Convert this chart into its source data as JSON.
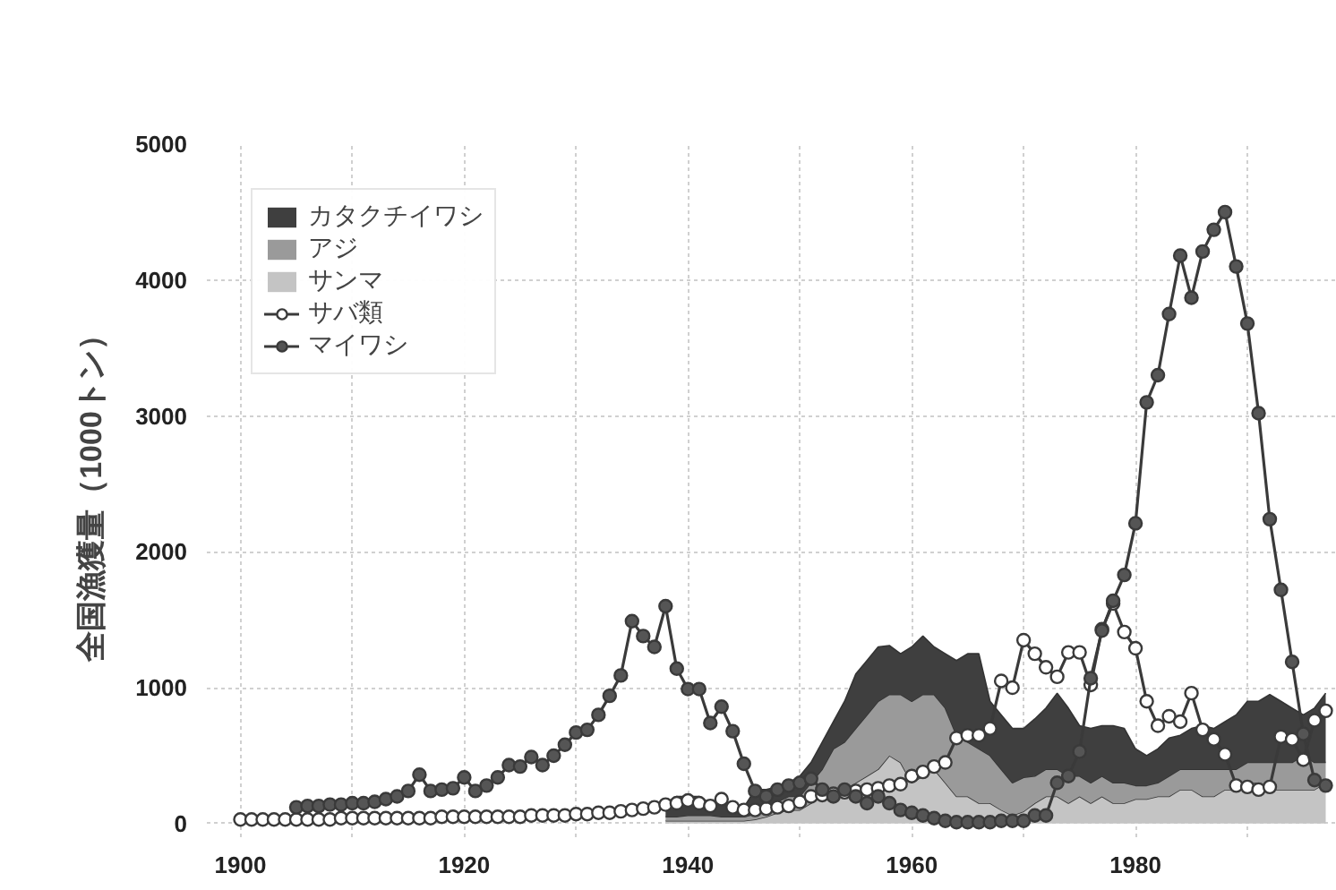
{
  "chart_data": {
    "type": "area",
    "ylabel": "全国漁獲量（1000トン）",
    "xlim": [
      1897,
      1998
    ],
    "ylim": [
      -100,
      5000
    ],
    "xticks": [
      1900,
      {
        "value": 1910,
        "label": null
      },
      1920,
      {
        "value": 1930,
        "label": null
      },
      1940,
      {
        "value": 1950,
        "label": null
      },
      1960,
      {
        "value": 1970,
        "label": null
      },
      1980,
      {
        "value": 1990,
        "label": null
      }
    ],
    "yticks": [
      0,
      1000,
      2000,
      3000,
      4000,
      5000
    ],
    "grid": true,
    "legend": "top left",
    "stacked": true,
    "series": [
      {
        "name": "サンマ",
        "color": "#c4c4c4",
        "x": [
          1938,
          1939,
          1940,
          1941,
          1942,
          1943,
          1944,
          1945,
          1946,
          1947,
          1948,
          1949,
          1950,
          1951,
          1952,
          1953,
          1954,
          1955,
          1956,
          1957,
          1958,
          1959,
          1960,
          1961,
          1962,
          1963,
          1964,
          1965,
          1966,
          1967,
          1968,
          1969,
          1970,
          1971,
          1972,
          1973,
          1974,
          1975,
          1976,
          1977,
          1978,
          1979,
          1980,
          1981,
          1982,
          1983,
          1984,
          1985,
          1986,
          1987,
          1988,
          1989,
          1990,
          1991,
          1992,
          1993,
          1994,
          1995,
          1996,
          1997
        ],
        "values": [
          20,
          20,
          20,
          20,
          20,
          20,
          20,
          20,
          30,
          50,
          80,
          100,
          100,
          150,
          200,
          250,
          250,
          300,
          350,
          400,
          500,
          450,
          300,
          350,
          400,
          300,
          200,
          200,
          150,
          150,
          100,
          60,
          90,
          150,
          200,
          200,
          150,
          200,
          150,
          200,
          150,
          150,
          180,
          180,
          200,
          200,
          250,
          250,
          200,
          200,
          250,
          250,
          300,
          300,
          250,
          250,
          250,
          250,
          250,
          300
        ]
      },
      {
        "name": "アジ",
        "color": "#9a9a9a",
        "x": [
          1938,
          1939,
          1940,
          1941,
          1942,
          1943,
          1944,
          1945,
          1946,
          1947,
          1948,
          1949,
          1950,
          1951,
          1952,
          1953,
          1954,
          1955,
          1956,
          1957,
          1958,
          1959,
          1960,
          1961,
          1962,
          1963,
          1964,
          1965,
          1966,
          1967,
          1968,
          1969,
          1970,
          1971,
          1972,
          1973,
          1974,
          1975,
          1976,
          1977,
          1978,
          1979,
          1980,
          1981,
          1982,
          1983,
          1984,
          1985,
          1986,
          1987,
          1988,
          1989,
          1990,
          1991,
          1992,
          1993,
          1994,
          1995,
          1996,
          1997
        ],
        "values": [
          30,
          30,
          40,
          40,
          40,
          30,
          30,
          30,
          40,
          60,
          80,
          100,
          100,
          150,
          200,
          300,
          350,
          400,
          450,
          500,
          450,
          500,
          600,
          600,
          550,
          550,
          450,
          400,
          400,
          350,
          300,
          240,
          250,
          200,
          200,
          200,
          200,
          150,
          150,
          150,
          150,
          150,
          100,
          100,
          100,
          150,
          150,
          150,
          200,
          200,
          150,
          150,
          150,
          150,
          200,
          200,
          200,
          250,
          200,
          150
        ]
      },
      {
        "name": "カタクチイワシ",
        "color": "#3f3f3f",
        "x": [
          1938,
          1939,
          1940,
          1941,
          1942,
          1943,
          1944,
          1945,
          1946,
          1947,
          1948,
          1949,
          1950,
          1951,
          1952,
          1953,
          1954,
          1955,
          1956,
          1957,
          1958,
          1959,
          1960,
          1961,
          1962,
          1963,
          1964,
          1965,
          1966,
          1967,
          1968,
          1969,
          1970,
          1971,
          1972,
          1973,
          1974,
          1975,
          1976,
          1977,
          1978,
          1979,
          1980,
          1981,
          1982,
          1983,
          1984,
          1985,
          1986,
          1987,
          1988,
          1989,
          1990,
          1991,
          1992,
          1993,
          1994,
          1995,
          1996,
          1997
        ],
        "values": [
          100,
          150,
          140,
          140,
          90,
          100,
          100,
          70,
          180,
          140,
          110,
          100,
          150,
          150,
          200,
          200,
          300,
          400,
          400,
          400,
          360,
          300,
          400,
          430,
          350,
          400,
          550,
          650,
          700,
          400,
          400,
          400,
          360,
          420,
          450,
          560,
          500,
          370,
          400,
          370,
          420,
          400,
          270,
          220,
          250,
          280,
          250,
          300,
          320,
          300,
          350,
          400,
          450,
          450,
          500,
          450,
          400,
          300,
          400,
          510
        ]
      },
      {
        "name": "サバ類",
        "type": "line",
        "marker": "circle",
        "color": "#ffffff",
        "x": [
          1900,
          1901,
          1902,
          1903,
          1904,
          1905,
          1906,
          1907,
          1908,
          1909,
          1910,
          1911,
          1912,
          1913,
          1914,
          1915,
          1916,
          1917,
          1918,
          1919,
          1920,
          1921,
          1922,
          1923,
          1924,
          1925,
          1926,
          1927,
          1928,
          1929,
          1930,
          1931,
          1932,
          1933,
          1934,
          1935,
          1936,
          1937,
          1938,
          1939,
          1940,
          1941,
          1942,
          1943,
          1944,
          1945,
          1946,
          1947,
          1948,
          1949,
          1950,
          1951,
          1952,
          1953,
          1954,
          1955,
          1956,
          1957,
          1958,
          1959,
          1960,
          1961,
          1962,
          1963,
          1964,
          1965,
          1966,
          1967,
          1968,
          1969,
          1970,
          1971,
          1972,
          1973,
          1974,
          1975,
          1976,
          1977,
          1978,
          1979,
          1980,
          1981,
          1982,
          1983,
          1984,
          1985,
          1986,
          1987,
          1988,
          1989,
          1990,
          1991,
          1992,
          1993,
          1994,
          1995,
          1996,
          1997
        ],
        "values": [
          30,
          30,
          30,
          30,
          30,
          30,
          30,
          30,
          30,
          40,
          40,
          40,
          40,
          40,
          40,
          40,
          40,
          40,
          50,
          50,
          50,
          50,
          50,
          50,
          50,
          50,
          60,
          60,
          60,
          60,
          70,
          70,
          80,
          80,
          90,
          100,
          110,
          120,
          140,
          150,
          170,
          150,
          130,
          180,
          120,
          100,
          100,
          110,
          120,
          130,
          160,
          200,
          210,
          220,
          230,
          240,
          250,
          260,
          280,
          290,
          350,
          380,
          420,
          450,
          630,
          650,
          650,
          700,
          1050,
          1000,
          1350,
          1250,
          1150,
          1080,
          1260,
          1260,
          1020,
          1430,
          1620,
          1410,
          1290,
          900,
          720,
          790,
          750,
          960,
          690,
          620,
          510,
          280,
          270,
          250,
          270,
          640,
          620,
          470,
          760,
          830
        ]
      },
      {
        "name": "マイワシ",
        "type": "line",
        "marker": "circle",
        "color": "#555555",
        "x": [
          1905,
          1906,
          1907,
          1908,
          1909,
          1910,
          1911,
          1912,
          1913,
          1914,
          1915,
          1916,
          1917,
          1918,
          1919,
          1920,
          1921,
          1922,
          1923,
          1924,
          1925,
          1926,
          1927,
          1928,
          1929,
          1930,
          1931,
          1932,
          1933,
          1934,
          1935,
          1936,
          1937,
          1938,
          1939,
          1940,
          1941,
          1942,
          1943,
          1944,
          1945,
          1946,
          1947,
          1948,
          1949,
          1950,
          1951,
          1952,
          1953,
          1954,
          1955,
          1956,
          1957,
          1958,
          1959,
          1960,
          1961,
          1962,
          1963,
          1964,
          1965,
          1966,
          1967,
          1968,
          1969,
          1970,
          1971,
          1972,
          1973,
          1974,
          1975,
          1976,
          1977,
          1978,
          1979,
          1980,
          1981,
          1982,
          1983,
          1984,
          1985,
          1986,
          1987,
          1988,
          1989,
          1990,
          1991,
          1992,
          1993,
          1994,
          1995,
          1996,
          1997
        ],
        "values": [
          120,
          130,
          130,
          140,
          140,
          150,
          150,
          160,
          180,
          200,
          240,
          360,
          240,
          250,
          260,
          340,
          240,
          280,
          340,
          430,
          420,
          490,
          430,
          500,
          580,
          670,
          690,
          800,
          940,
          1090,
          1490,
          1380,
          1300,
          1600,
          1140,
          990,
          990,
          740,
          860,
          680,
          440,
          240,
          200,
          250,
          280,
          300,
          330,
          250,
          200,
          250,
          200,
          150,
          200,
          150,
          100,
          80,
          60,
          40,
          20,
          10,
          10,
          10,
          10,
          20,
          20,
          20,
          60,
          60,
          300,
          350,
          530,
          1070,
          1420,
          1640,
          1830,
          2210,
          3100,
          3300,
          3750,
          4180,
          3870,
          4210,
          4370,
          4500,
          4100,
          3680,
          3020,
          2240,
          1720,
          1190,
          660,
          320,
          280
        ]
      }
    ]
  }
}
